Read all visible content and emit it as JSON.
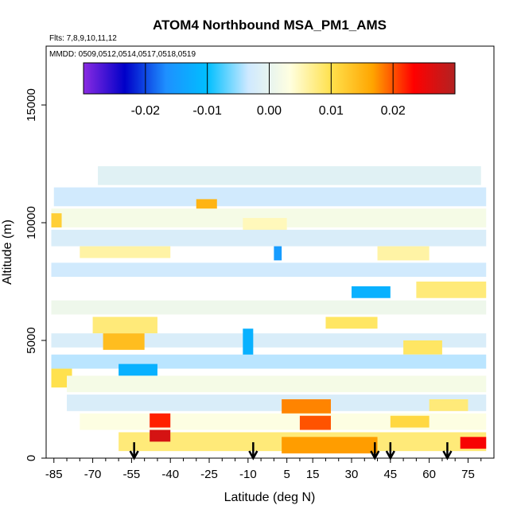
{
  "chart_data": {
    "type": "heatmap",
    "title": "ATOM4 Northbound MSA_PM1_AMS",
    "annotations": {
      "flights": "Flts: 7,8,9,10,11,12",
      "dates": "MMDD: 0509,0512,0514,0517,0518,0519"
    },
    "xlabel": "Latitude (deg N)",
    "ylabel": "Altitude (m)",
    "xlim": [
      -88,
      85
    ],
    "ylim": [
      0,
      17500
    ],
    "x_ticks": [
      -85,
      -70,
      -55,
      -40,
      -25,
      -10,
      5,
      15,
      30,
      45,
      60,
      75
    ],
    "x_tick_labels": [
      "-85",
      "-70",
      "-55",
      "-40",
      "-25",
      "-10",
      "5",
      "15",
      "30",
      "45",
      "60",
      "75"
    ],
    "x_minor_ticks": [
      -80,
      -75,
      -65,
      -60,
      -50,
      -45,
      -35,
      -30,
      -20,
      -15,
      -5,
      0,
      10,
      20,
      25,
      35,
      40,
      50,
      55,
      65,
      70,
      80
    ],
    "y_ticks": [
      0,
      5000,
      10000,
      15000
    ],
    "y_tick_labels": [
      "0",
      "5000",
      "10000",
      "15000"
    ],
    "colorbar": {
      "min": -0.03,
      "max": 0.03,
      "ticks": [
        -0.02,
        -0.01,
        0.0,
        0.01,
        0.02
      ],
      "tick_labels": [
        "-0.02",
        "-0.01",
        "0.00",
        "0.01",
        "0.02"
      ],
      "colors": [
        "#8a2be2",
        "#0000c8",
        "#1e90ff",
        "#00bfff",
        "#cfe9ff",
        "#ffffe0",
        "#ffe14d",
        "#ffa500",
        "#ff0000",
        "#b22222"
      ]
    },
    "flight_arrows_lat": [
      -54,
      -8,
      39,
      45,
      67
    ],
    "grid": false,
    "legend": "top",
    "cells": [
      {
        "lat0": -68,
        "lat1": 80,
        "alt0": 11600,
        "alt1": 12400,
        "v": -0.001
      },
      {
        "lat0": -85,
        "lat1": 82,
        "alt0": 10700,
        "alt1": 11500,
        "v": -0.003
      },
      {
        "lat0": -30,
        "lat1": -22,
        "alt0": 10400,
        "alt1": 11000,
        "v": 0.015
      },
      {
        "lat0": -86,
        "lat1": 82,
        "alt0": 9800,
        "alt1": 10600,
        "v": 0.002
      },
      {
        "lat0": -86,
        "lat1": -82,
        "alt0": 9800,
        "alt1": 10400,
        "v": 0.012
      },
      {
        "lat0": -12,
        "lat1": 5,
        "alt0": 9600,
        "alt1": 10200,
        "v": 0.005
      },
      {
        "lat0": -86,
        "lat1": 82,
        "alt0": 9000,
        "alt1": 9700,
        "v": -0.002
      },
      {
        "lat0": 0,
        "lat1": 3,
        "alt0": 8400,
        "alt1": 9000,
        "v": -0.015
      },
      {
        "lat0": -75,
        "lat1": -40,
        "alt0": 8500,
        "alt1": 9000,
        "v": 0.006
      },
      {
        "lat0": 40,
        "lat1": 60,
        "alt0": 8400,
        "alt1": 9000,
        "v": 0.006
      },
      {
        "lat0": -86,
        "lat1": 82,
        "alt0": 7700,
        "alt1": 8300,
        "v": -0.003
      },
      {
        "lat0": 30,
        "lat1": 45,
        "alt0": 6800,
        "alt1": 7300,
        "v": -0.012
      },
      {
        "lat0": 55,
        "lat1": 82,
        "alt0": 6800,
        "alt1": 7500,
        "v": 0.008
      },
      {
        "lat0": -86,
        "lat1": 82,
        "alt0": 6100,
        "alt1": 6700,
        "v": 0.001
      },
      {
        "lat0": -70,
        "lat1": -45,
        "alt0": 5300,
        "alt1": 6000,
        "v": 0.008
      },
      {
        "lat0": 20,
        "lat1": 40,
        "alt0": 5500,
        "alt1": 6000,
        "v": 0.009
      },
      {
        "lat0": -86,
        "lat1": 82,
        "alt0": 4700,
        "alt1": 5300,
        "v": -0.002
      },
      {
        "lat0": -66,
        "lat1": -50,
        "alt0": 4600,
        "alt1": 5300,
        "v": 0.014
      },
      {
        "lat0": -12,
        "lat1": -8,
        "alt0": 4000,
        "alt1": 5500,
        "v": -0.012
      },
      {
        "lat0": 50,
        "lat1": 65,
        "alt0": 4400,
        "alt1": 5000,
        "v": 0.009
      },
      {
        "lat0": -86,
        "lat1": 82,
        "alt0": 3800,
        "alt1": 4400,
        "v": -0.004
      },
      {
        "lat0": -60,
        "lat1": -45,
        "alt0": 3500,
        "alt1": 4000,
        "v": -0.012
      },
      {
        "lat0": -86,
        "lat1": -78,
        "alt0": 3000,
        "alt1": 3800,
        "v": 0.01
      },
      {
        "lat0": -80,
        "lat1": 82,
        "alt0": 2800,
        "alt1": 3500,
        "v": 0.002
      },
      {
        "lat0": -80,
        "lat1": 82,
        "alt0": 2000,
        "alt1": 2700,
        "v": -0.002
      },
      {
        "lat0": 3,
        "lat1": 22,
        "alt0": 1800,
        "alt1": 2500,
        "v": 0.018
      },
      {
        "lat0": 60,
        "lat1": 75,
        "alt0": 2000,
        "alt1": 2500,
        "v": 0.008
      },
      {
        "lat0": -75,
        "lat1": 82,
        "alt0": 1200,
        "alt1": 1900,
        "v": 0.003
      },
      {
        "lat0": -48,
        "lat1": -40,
        "alt0": 1300,
        "alt1": 1900,
        "v": 0.022
      },
      {
        "lat0": 10,
        "lat1": 22,
        "alt0": 1200,
        "alt1": 1800,
        "v": 0.02
      },
      {
        "lat0": 45,
        "lat1": 60,
        "alt0": 1300,
        "alt1": 1800,
        "v": 0.011
      },
      {
        "lat0": -60,
        "lat1": 82,
        "alt0": 300,
        "alt1": 1100,
        "v": 0.008
      },
      {
        "lat0": -48,
        "lat1": -40,
        "alt0": 700,
        "alt1": 1200,
        "v": 0.027
      },
      {
        "lat0": 3,
        "lat1": 40,
        "alt0": 200,
        "alt1": 900,
        "v": 0.017
      },
      {
        "lat0": 72,
        "lat1": 82,
        "alt0": 400,
        "alt1": 900,
        "v": 0.024
      }
    ]
  }
}
